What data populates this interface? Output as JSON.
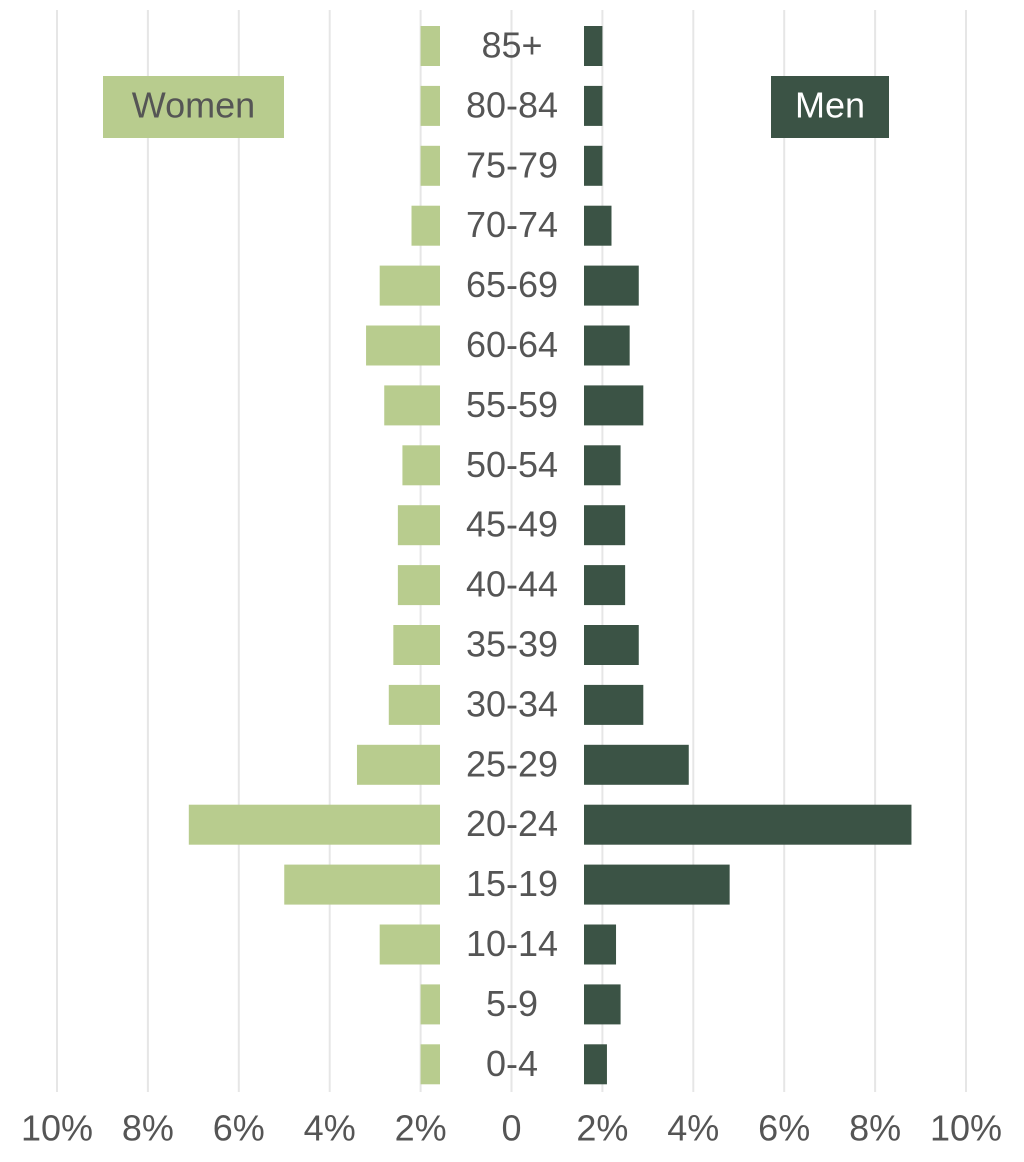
{
  "chart_data": {
    "type": "pyramid",
    "categories": [
      "85+",
      "80-84",
      "75-79",
      "70-74",
      "65-69",
      "60-64",
      "55-59",
      "50-54",
      "45-49",
      "40-44",
      "35-39",
      "30-34",
      "25-29",
      "20-24",
      "15-19",
      "10-14",
      "5-9",
      "0-4"
    ],
    "series": [
      {
        "name": "Women",
        "color": "#b8cc8e",
        "side": "left",
        "values": [
          2.0,
          2.0,
          2.0,
          2.2,
          2.9,
          3.2,
          2.8,
          2.4,
          2.5,
          2.5,
          2.6,
          2.7,
          3.4,
          7.1,
          5.0,
          2.9,
          2.0,
          2.0
        ]
      },
      {
        "name": "Men",
        "color": "#3b5345",
        "side": "right",
        "values": [
          2.0,
          2.0,
          2.0,
          2.2,
          2.8,
          2.6,
          2.9,
          2.4,
          2.5,
          2.5,
          2.8,
          2.9,
          3.9,
          8.8,
          4.8,
          2.3,
          2.4,
          2.1
        ]
      }
    ],
    "xlim": [
      -10,
      10
    ],
    "xticks": [
      {
        "value": -10,
        "label": "10%"
      },
      {
        "value": -8,
        "label": "8%"
      },
      {
        "value": -6,
        "label": "6%"
      },
      {
        "value": -4,
        "label": "4%"
      },
      {
        "value": -2,
        "label": "2%"
      },
      0,
      {
        "value": 2,
        "label": "2%"
      },
      {
        "value": 4,
        "label": "4%"
      },
      {
        "value": 6,
        "label": "6%"
      },
      {
        "value": 8,
        "label": "8%"
      },
      {
        "value": 10,
        "label": "10%"
      }
    ],
    "grid": true
  }
}
